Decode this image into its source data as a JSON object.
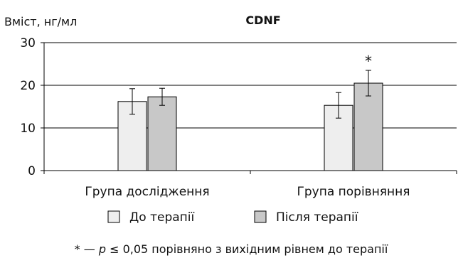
{
  "chart_data": {
    "type": "bar",
    "title": "CDNF",
    "ylabel": "Вміст, нг/мл",
    "xlabel": "",
    "ylim": [
      0,
      30
    ],
    "yticks": [
      0,
      10,
      20,
      30
    ],
    "grid": true,
    "categories": [
      "Група дослідження",
      "Група порівняння"
    ],
    "series": [
      {
        "name": "До терапії",
        "color": "#eeeeee",
        "values": [
          16.2,
          15.3
        ],
        "errors": [
          3.0,
          3.0
        ]
      },
      {
        "name": "Після терапії",
        "color": "#c8c8c8",
        "values": [
          17.3,
          20.5
        ],
        "errors": [
          2.0,
          3.0
        ]
      }
    ],
    "annotations": [
      {
        "text": "*",
        "category": 1,
        "series": 1
      }
    ],
    "legend_position": "bottom",
    "footnote": {
      "prefix": "* — ",
      "p": "p",
      "rest": " ≤ 0,05 порівняно з вихідним рівнем до терапії"
    }
  }
}
